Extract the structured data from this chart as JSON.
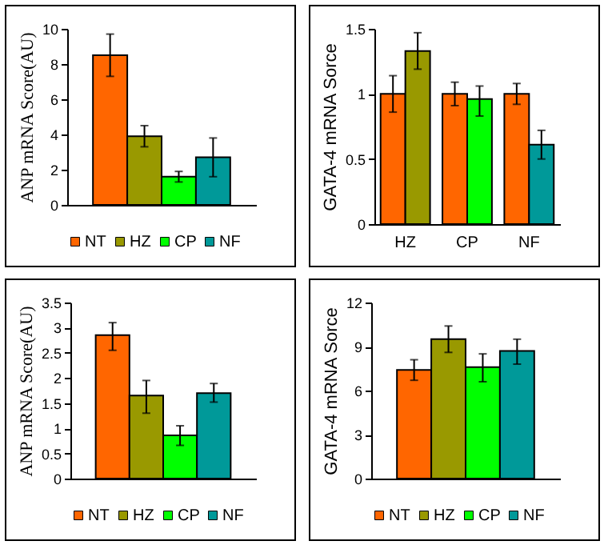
{
  "chart_data": [
    {
      "type": "bar",
      "ylabel": "ANP mRNA Score(AU)",
      "categories": [
        null
      ],
      "ylim": [
        0,
        10
      ],
      "yticks": [
        0,
        2,
        4,
        6,
        8,
        10
      ],
      "legend": "bottom",
      "tick_labels": "y",
      "series": [
        {
          "name": "NT",
          "color": "#ff6600",
          "values": [
            8.5
          ],
          "errors": [
            [
              7.3,
              9.7
            ]
          ]
        },
        {
          "name": "HZ",
          "color": "#999900",
          "values": [
            3.9
          ],
          "errors": [
            [
              3.3,
              4.5
            ]
          ]
        },
        {
          "name": "CP",
          "color": "#00ff00",
          "values": [
            1.6
          ],
          "errors": [
            [
              1.3,
              1.9
            ]
          ]
        },
        {
          "name": "NF",
          "color": "#009999",
          "values": [
            2.7
          ],
          "errors": [
            [
              1.6,
              3.8
            ]
          ]
        }
      ]
    },
    {
      "type": "bar",
      "ylabel": "GATA-4 mRNA Sorce",
      "categories": [
        "HZ",
        "CP",
        "NF"
      ],
      "ylim": [
        0,
        1.5
      ],
      "yticks": [
        0,
        0.5,
        1,
        1.5
      ],
      "series": [
        {
          "color": "#ff6600",
          "values": [
            1,
            1,
            1
          ],
          "errors": [
            [
              0.86,
              1.14
            ],
            [
              0.91,
              1.09
            ],
            [
              0.92,
              1.08
            ]
          ]
        },
        {
          "colors": [
            "#999900",
            "#00ff00",
            "#009999"
          ],
          "values": [
            1.33,
            0.96,
            0.61
          ],
          "errors": [
            [
              1.19,
              1.47
            ],
            [
              0.83,
              1.06
            ],
            [
              0.5,
              0.72
            ]
          ]
        }
      ]
    },
    {
      "type": "bar",
      "ylabel": "ANP mRNA Score(AU)",
      "categories": [
        null
      ],
      "ylim": [
        0,
        3.5
      ],
      "yticks": [
        0,
        0.5,
        1,
        1.5,
        2,
        2.5,
        3,
        3.5
      ],
      "legend": "bottom",
      "tick_labels": "y",
      "series": [
        {
          "name": "NT",
          "color": "#ff6600",
          "values": [
            2.85
          ],
          "errors": [
            [
              2.55,
              3.1
            ]
          ]
        },
        {
          "name": "HZ",
          "color": "#999900",
          "values": [
            1.65
          ],
          "errors": [
            [
              1.3,
              1.95
            ]
          ]
        },
        {
          "name": "CP",
          "color": "#00ff00",
          "values": [
            0.86
          ],
          "errors": [
            [
              0.66,
              1.05
            ]
          ]
        },
        {
          "name": "NF",
          "color": "#009999",
          "values": [
            1.7
          ],
          "errors": [
            [
              1.52,
              1.89
            ]
          ]
        }
      ]
    },
    {
      "type": "bar",
      "ylabel": "GATA-4 mRNA Sorce",
      "categories": [
        null
      ],
      "ylim": [
        0,
        12
      ],
      "yticks": [
        0,
        3,
        6,
        9,
        12
      ],
      "legend": "bottom",
      "tick_labels": "y",
      "series": [
        {
          "name": "NT",
          "color": "#ff6600",
          "values": [
            7.4
          ],
          "errors": [
            [
              6.7,
              8.1
            ]
          ]
        },
        {
          "name": "HZ",
          "color": "#999900",
          "values": [
            9.5
          ],
          "errors": [
            [
              8.6,
              10.4
            ]
          ]
        },
        {
          "name": "CP",
          "color": "#00ff00",
          "values": [
            7.6
          ],
          "errors": [
            [
              6.6,
              8.5
            ]
          ]
        },
        {
          "name": "NF",
          "color": "#009999",
          "values": [
            8.7
          ],
          "errors": [
            [
              7.8,
              9.5
            ]
          ]
        }
      ]
    }
  ]
}
